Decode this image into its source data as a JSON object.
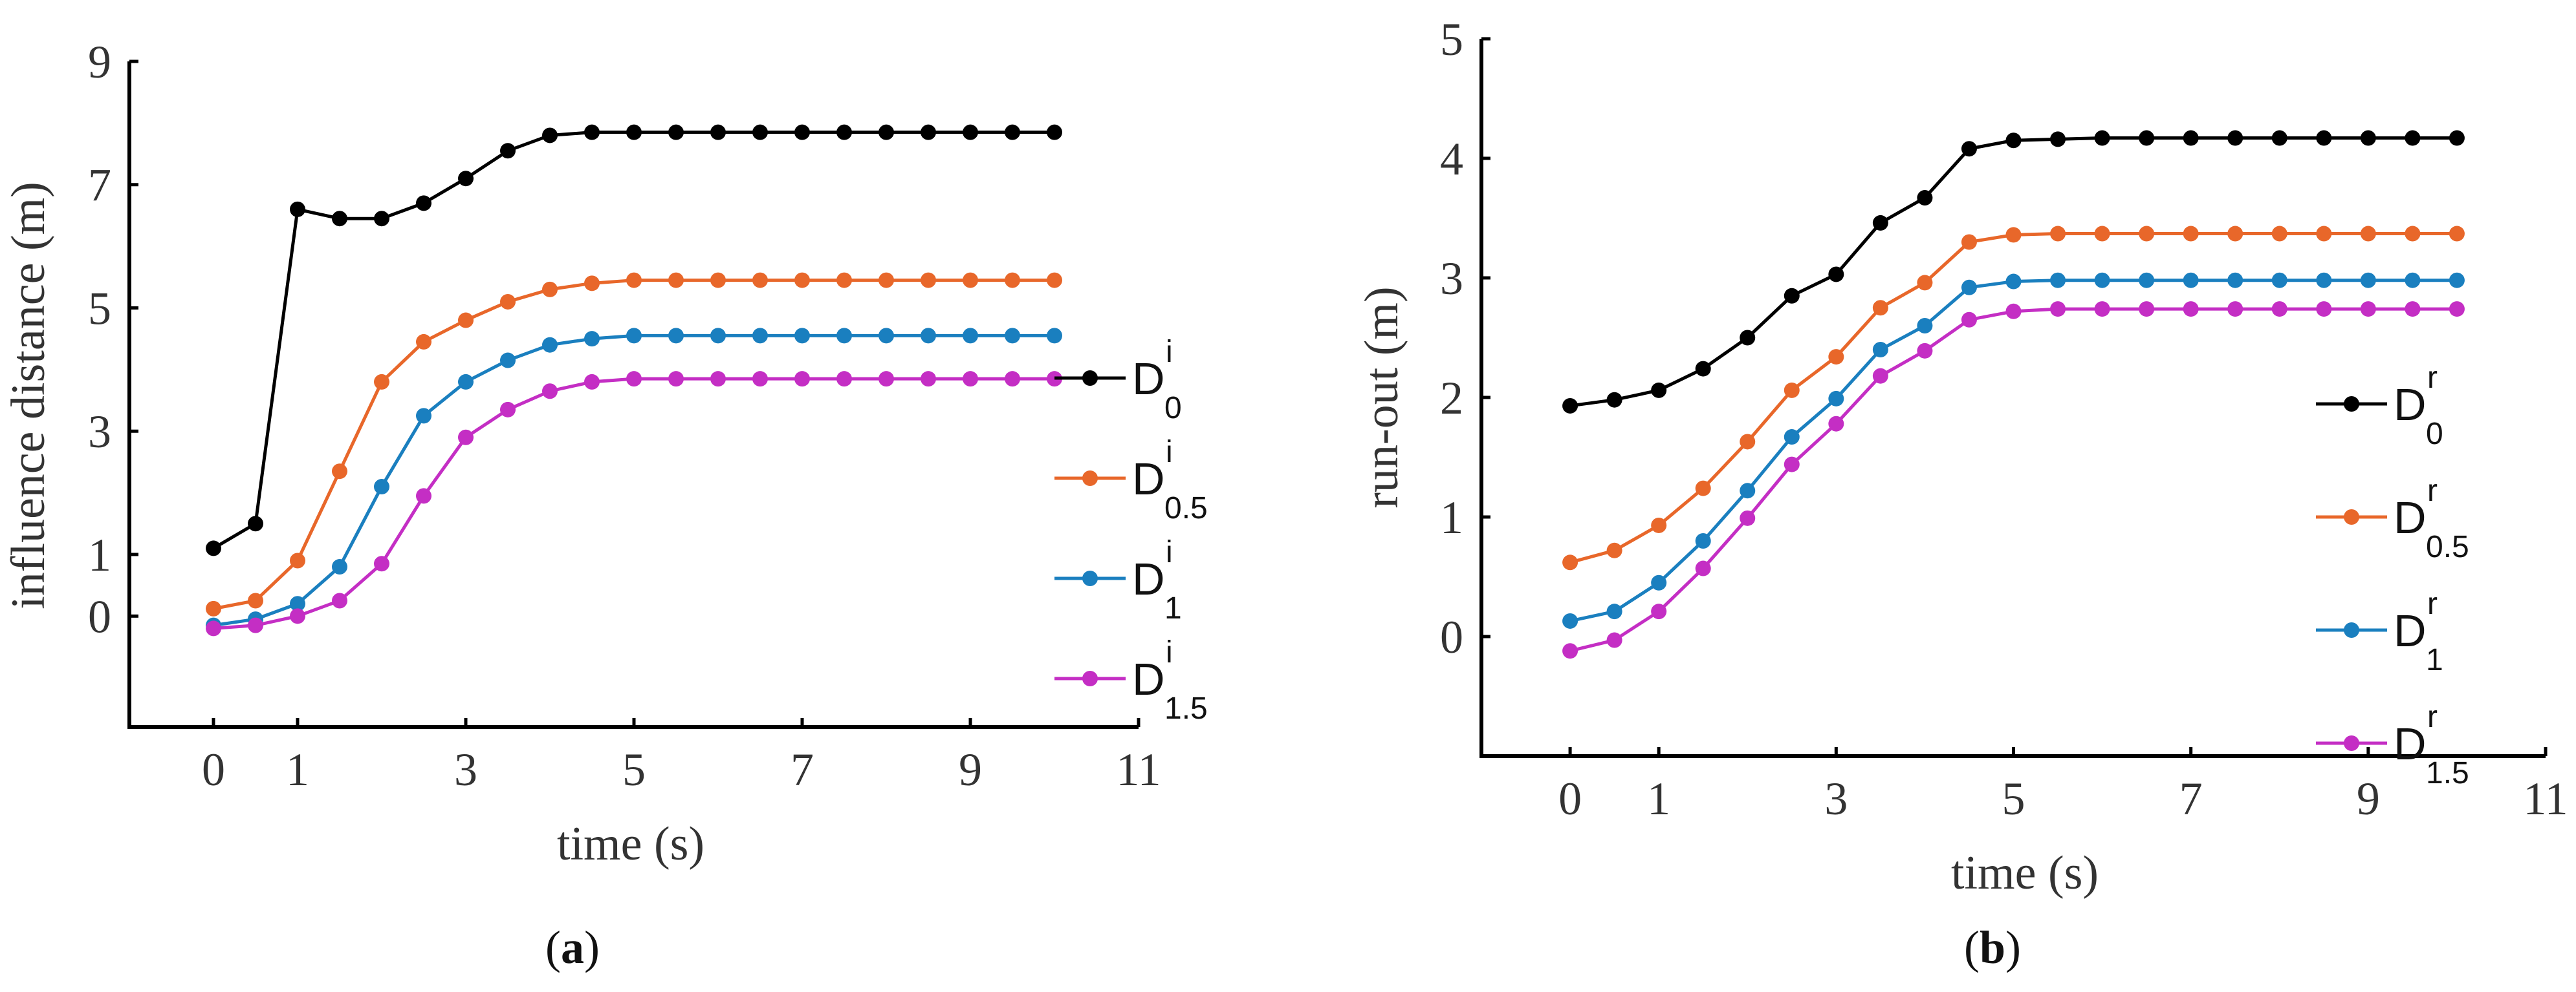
{
  "chart_data": [
    {
      "type": "line",
      "panel_label": "a",
      "xlabel": "time (s)",
      "ylabel": "influence distance (m)",
      "xlim": [
        -1,
        11
      ],
      "ylim": [
        -1.8,
        9
      ],
      "xticks": [
        0,
        1,
        3,
        5,
        7,
        9,
        11
      ],
      "yticks": [
        0,
        1,
        3,
        5,
        7,
        9
      ],
      "legend_position": "right",
      "x": [
        0,
        0.5,
        1,
        1.5,
        2,
        2.5,
        3,
        3.5,
        4,
        4.5,
        5,
        5.5,
        6,
        6.5,
        7,
        7.5,
        8,
        8.5,
        9,
        9.5,
        10
      ],
      "series": [
        {
          "name": "D_0^i",
          "base": "D",
          "sup": "i",
          "sub": "0",
          "color": "#000000",
          "values": [
            1.1,
            1.5,
            6.6,
            6.45,
            6.45,
            6.7,
            7.1,
            7.55,
            7.8,
            7.85,
            7.85,
            7.85,
            7.85,
            7.85,
            7.85,
            7.85,
            7.85,
            7.85,
            7.85,
            7.85,
            7.85
          ]
        },
        {
          "name": "D_0.5^i",
          "base": "D",
          "sup": "i",
          "sub": "0.5",
          "color": "#e8672a",
          "values": [
            0.12,
            0.25,
            0.9,
            2.35,
            3.8,
            4.45,
            4.8,
            5.1,
            5.3,
            5.4,
            5.45,
            5.45,
            5.45,
            5.45,
            5.45,
            5.45,
            5.45,
            5.45,
            5.45,
            5.45,
            5.45
          ]
        },
        {
          "name": "D_1^i",
          "base": "D",
          "sup": "i",
          "sub": "1",
          "color": "#1a7fbf",
          "values": [
            -0.15,
            -0.05,
            0.2,
            0.8,
            2.1,
            3.25,
            3.8,
            4.15,
            4.4,
            4.5,
            4.55,
            4.55,
            4.55,
            4.55,
            4.55,
            4.55,
            4.55,
            4.55,
            4.55,
            4.55,
            4.55
          ]
        },
        {
          "name": "D_1.5^i",
          "base": "D",
          "sup": "i",
          "sub": "1.5",
          "color": "#c42ec4",
          "values": [
            -0.2,
            -0.15,
            0.0,
            0.25,
            0.85,
            1.95,
            2.9,
            3.35,
            3.65,
            3.8,
            3.85,
            3.85,
            3.85,
            3.85,
            3.85,
            3.85,
            3.85,
            3.85,
            3.85,
            3.85,
            3.85
          ]
        }
      ]
    },
    {
      "type": "line",
      "panel_label": "b",
      "xlabel": "time (s)",
      "ylabel": "run-out (m)",
      "xlim": [
        -1,
        11
      ],
      "ylim": [
        -1,
        5
      ],
      "xticks": [
        0,
        1,
        3,
        5,
        7,
        9,
        11
      ],
      "yticks": [
        0,
        1,
        2,
        3,
        4,
        5
      ],
      "legend_position": "right",
      "x": [
        0,
        0.5,
        1,
        1.5,
        2,
        2.5,
        3,
        3.5,
        4,
        4.5,
        5,
        5.5,
        6,
        6.5,
        7,
        7.5,
        8,
        8.5,
        9,
        9.5,
        10
      ],
      "series": [
        {
          "name": "D_0^r",
          "base": "D",
          "sup": "r",
          "sub": "0",
          "color": "#000000",
          "values": [
            1.93,
            1.98,
            2.06,
            2.24,
            2.5,
            2.85,
            3.03,
            3.46,
            3.67,
            4.08,
            4.15,
            4.16,
            4.17,
            4.17,
            4.17,
            4.17,
            4.17,
            4.17,
            4.17,
            4.17,
            4.17
          ]
        },
        {
          "name": "D_0.5^r",
          "base": "D",
          "sup": "r",
          "sub": "0.5",
          "color": "#e8672a",
          "values": [
            0.62,
            0.72,
            0.93,
            1.24,
            1.63,
            2.06,
            2.34,
            2.75,
            2.96,
            3.3,
            3.36,
            3.37,
            3.37,
            3.37,
            3.37,
            3.37,
            3.37,
            3.37,
            3.37,
            3.37,
            3.37
          ]
        },
        {
          "name": "D_1^r",
          "base": "D",
          "sup": "r",
          "sub": "1",
          "color": "#1a7fbf",
          "values": [
            0.13,
            0.21,
            0.45,
            0.8,
            1.22,
            1.67,
            1.99,
            2.4,
            2.6,
            2.92,
            2.97,
            2.98,
            2.98,
            2.98,
            2.98,
            2.98,
            2.98,
            2.98,
            2.98,
            2.98,
            2.98
          ]
        },
        {
          "name": "D_1.5^r",
          "base": "D",
          "sup": "r",
          "sub": "1.5",
          "color": "#c42ec4",
          "values": [
            -0.12,
            -0.03,
            0.21,
            0.57,
            0.99,
            1.44,
            1.78,
            2.18,
            2.39,
            2.65,
            2.72,
            2.74,
            2.74,
            2.74,
            2.74,
            2.74,
            2.74,
            2.74,
            2.74,
            2.74,
            2.74
          ]
        }
      ]
    }
  ]
}
